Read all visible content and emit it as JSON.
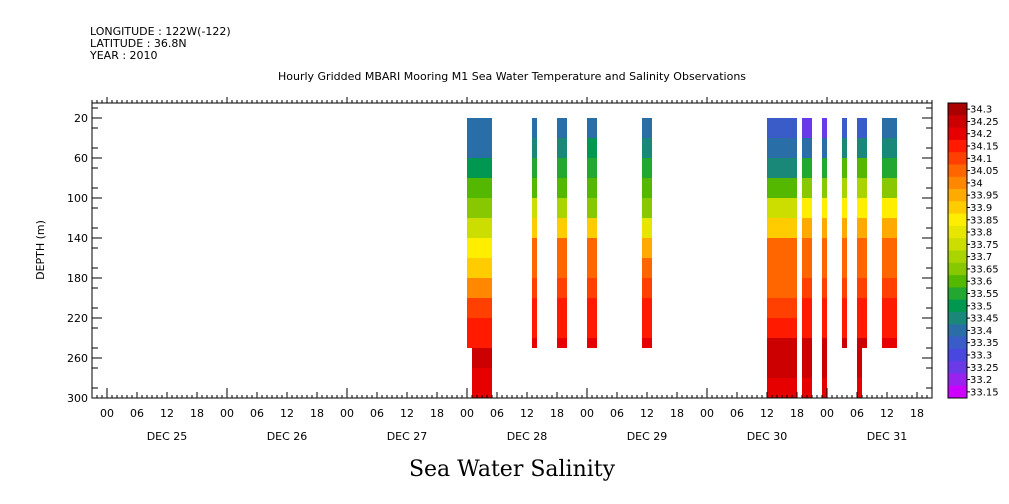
{
  "header": {
    "longitude": "LONGITUDE : 122W(-122)",
    "latitude": "LATITUDE : 36.8N",
    "year": "YEAR : 2010"
  },
  "chart_data": {
    "type": "heatmap",
    "title": "Hourly Gridded MBARI Mooring M1 Sea Water Temperature and Salinity Observations",
    "subtitle": "Sea Water Salinity",
    "ylabel": "DEPTH (m)",
    "xlabel": "",
    "grid": false,
    "legend_placement": "right",
    "x_hour_ticks": [
      "00",
      "06",
      "12",
      "18",
      "00",
      "06",
      "12",
      "18",
      "00",
      "06",
      "12",
      "18",
      "00",
      "06",
      "12",
      "18",
      "00",
      "06",
      "12",
      "18",
      "00",
      "06",
      "12",
      "18",
      "00",
      "06",
      "12",
      "18"
    ],
    "x_day_labels": [
      "DEC 25",
      "DEC 26",
      "DEC 27",
      "DEC 28",
      "DEC 29",
      "DEC 30",
      "DEC 31"
    ],
    "x_range_hours_since_dec25_00": [
      -3,
      165
    ],
    "y_ticks": [
      20,
      60,
      100,
      140,
      180,
      220,
      260,
      300
    ],
    "y_range": [
      300,
      5
    ],
    "colorbar_levels": [
      "34.3",
      "34.25",
      "34.2",
      "34.15",
      "34.1",
      "34.05",
      "34",
      "33.95",
      "33.9",
      "33.85",
      "33.8",
      "33.75",
      "33.7",
      "33.65",
      "33.6",
      "33.55",
      "33.5",
      "33.45",
      "33.4",
      "33.35",
      "33.3",
      "33.25",
      "33.2",
      "33.15"
    ],
    "colorbar_colors": [
      "#aa0000",
      "#cc0000",
      "#e60000",
      "#ff1a00",
      "#ff4000",
      "#ff6600",
      "#ff8800",
      "#ffaa00",
      "#ffcc00",
      "#ffee00",
      "#e6e600",
      "#ccdd00",
      "#aad400",
      "#88c800",
      "#55b800",
      "#22a830",
      "#009850",
      "#1a8878",
      "#2a6ea8",
      "#3a5cc8",
      "#4848e0",
      "#6a3ae8",
      "#9a22ee",
      "#cc00ff"
    ],
    "profiles": [
      {
        "x0": 72,
        "x1": 77,
        "depths": [
          20,
          40,
          60,
          80,
          100,
          120,
          140,
          160,
          180,
          200,
          220,
          240,
          250
        ],
        "values": [
          33.4,
          33.4,
          33.45,
          33.55,
          33.6,
          33.7,
          33.8,
          33.9,
          33.95,
          34.05,
          34.1,
          34.15,
          34.2
        ]
      },
      {
        "x0": 73,
        "x1": 77,
        "depths": [
          250,
          260,
          270,
          280,
          290,
          300
        ],
        "values": [
          34.25,
          34.25,
          34.2,
          34.2,
          34.2,
          34.2
        ]
      },
      {
        "x0": 85,
        "x1": 86,
        "depths": [
          20,
          40,
          60,
          80,
          100,
          120,
          140,
          160,
          180,
          200,
          220,
          240,
          250
        ],
        "values": [
          33.35,
          33.4,
          33.5,
          33.55,
          33.6,
          33.85,
          34.0,
          34.05,
          34.05,
          34.1,
          34.15,
          34.2,
          34.2
        ]
      },
      {
        "x0": 90,
        "x1": 92,
        "depths": [
          20,
          40,
          60,
          80,
          100,
          120,
          140,
          160,
          180,
          200,
          220,
          240,
          250
        ],
        "values": [
          33.35,
          33.4,
          33.5,
          33.55,
          33.6,
          33.8,
          34.0,
          34.05,
          34.05,
          34.1,
          34.15,
          34.2,
          34.2
        ]
      },
      {
        "x0": 96,
        "x1": 98,
        "depths": [
          20,
          40,
          60,
          80,
          100,
          120,
          140,
          160,
          180,
          200,
          220,
          240,
          250
        ],
        "values": [
          33.4,
          33.45,
          33.5,
          33.55,
          33.6,
          33.75,
          34.0,
          34.05,
          34.05,
          34.1,
          34.15,
          34.2,
          34.2
        ]
      },
      {
        "x0": 107,
        "x1": 109,
        "depths": [
          20,
          40,
          60,
          80,
          100,
          120,
          140,
          160,
          180,
          200,
          220,
          240,
          250
        ],
        "values": [
          33.35,
          33.4,
          33.5,
          33.55,
          33.6,
          33.7,
          33.9,
          34.05,
          34.05,
          34.1,
          34.15,
          34.2,
          34.2
        ]
      },
      {
        "x0": 132,
        "x1": 138,
        "depths": [
          20,
          40,
          60,
          80,
          100,
          120,
          140,
          160,
          180,
          200,
          220,
          240,
          260,
          280,
          300
        ],
        "values": [
          33.3,
          33.35,
          33.4,
          33.5,
          33.65,
          33.85,
          34.0,
          34.05,
          34.05,
          34.05,
          34.15,
          34.2,
          34.25,
          34.2,
          34.2
        ]
      },
      {
        "x0": 139,
        "x1": 141,
        "depths": [
          20,
          40,
          60,
          80,
          100,
          120,
          140,
          160,
          180,
          200,
          220,
          240,
          260,
          280,
          300
        ],
        "values": [
          33.2,
          33.3,
          33.45,
          33.6,
          33.75,
          33.9,
          34.0,
          34.05,
          34.05,
          34.1,
          34.15,
          34.2,
          34.25,
          34.2,
          34.2
        ]
      },
      {
        "x0": 143,
        "x1": 144,
        "depths": [
          20,
          40,
          60,
          80,
          100,
          120,
          140,
          160,
          180,
          200,
          220,
          240,
          260,
          280,
          300
        ],
        "values": [
          33.2,
          33.3,
          33.45,
          33.6,
          33.75,
          33.9,
          34.0,
          34.05,
          34.05,
          34.1,
          34.15,
          34.2,
          34.25,
          34.2,
          34.2
        ]
      },
      {
        "x0": 147,
        "x1": 148,
        "depths": [
          20,
          40,
          60,
          80,
          100,
          120,
          140,
          160,
          180,
          200,
          220,
          240,
          250
        ],
        "values": [
          33.3,
          33.4,
          33.55,
          33.65,
          33.8,
          33.9,
          34.0,
          34.05,
          34.05,
          34.1,
          34.15,
          34.2,
          34.25
        ]
      },
      {
        "x0": 150,
        "x1": 152,
        "depths": [
          20,
          40,
          60,
          80,
          100,
          120,
          140,
          160,
          180,
          200,
          220,
          240,
          250
        ],
        "values": [
          33.3,
          33.4,
          33.55,
          33.65,
          33.8,
          33.9,
          34.0,
          34.05,
          34.05,
          34.1,
          34.15,
          34.2,
          34.25
        ]
      },
      {
        "x0": 150,
        "x1": 151,
        "depths": [
          250,
          260,
          280,
          300
        ],
        "values": [
          34.25,
          34.25,
          34.2,
          34.2
        ]
      },
      {
        "x0": 155,
        "x1": 158,
        "depths": [
          20,
          40,
          60,
          80,
          100,
          120,
          140,
          160,
          180,
          200,
          220,
          240,
          250
        ],
        "values": [
          33.35,
          33.4,
          33.5,
          33.6,
          33.75,
          33.9,
          34.05,
          34.05,
          34.05,
          34.1,
          34.15,
          34.2,
          34.2
        ]
      }
    ]
  }
}
